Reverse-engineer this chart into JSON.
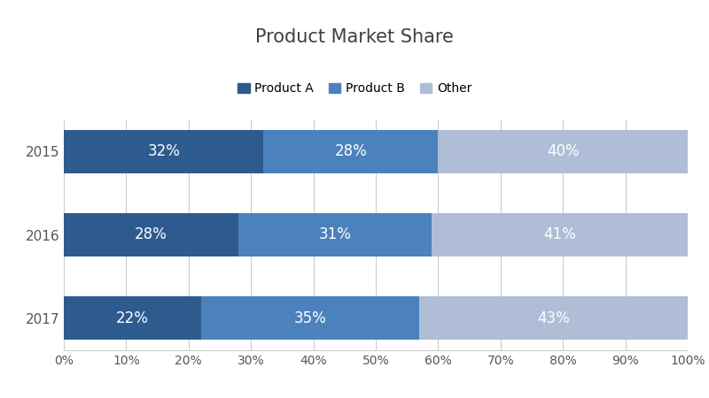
{
  "title": "Product Market Share",
  "years": [
    "2015",
    "2016",
    "2017"
  ],
  "series": {
    "Product A": [
      32,
      28,
      22
    ],
    "Product B": [
      28,
      31,
      35
    ],
    "Other": [
      40,
      41,
      43
    ]
  },
  "colors": {
    "Product A": "#2E5B8E",
    "Product B": "#4B82BE",
    "Other": "#B0BDD6"
  },
  "label_color": "#FFFFFF",
  "background_color": "#FFFFFF",
  "title_fontsize": 15,
  "label_fontsize": 12,
  "tick_fontsize": 10,
  "legend_fontsize": 10,
  "bar_height": 0.52,
  "xlim": [
    0,
    100
  ],
  "xticks": [
    0,
    10,
    20,
    30,
    40,
    50,
    60,
    70,
    80,
    90,
    100
  ],
  "xtick_labels": [
    "0%",
    "10%",
    "20%",
    "30%",
    "40%",
    "50%",
    "60%",
    "70%",
    "80%",
    "90%",
    "100%"
  ]
}
